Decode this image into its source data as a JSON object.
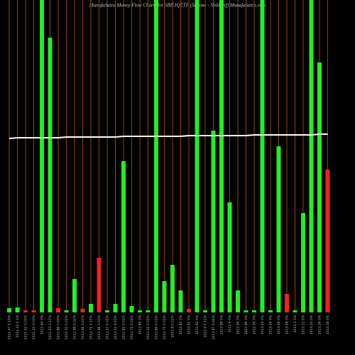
{
  "chart_data": {
    "type": "bar",
    "title": "MunafaSutra  Money Flow  Charts for SBILIQETF                (Sbiamc - Sbiliqetf) MunafaSutra.com",
    "categories": [
      "1011.47 0.15%",
      "1011.42 0.1%",
      "1011.42 0.01%",
      "1011.43 0.01%",
      "1011.44 0%",
      "1011.53 0.12%",
      "1012.86 0.05%",
      "1012.32 0.01%",
      "1012.58 0.02%",
      "1012.66 0.01%",
      "1012.71 0.11%",
      "1012.46 0.02%",
      "1012.57 0.01%",
      "1012.53 0.01%",
      "1012.62 0.01%",
      "1012.71 0.04%",
      "1012.69 0%",
      "1012.54 0.01%",
      "1012.66 0.01%",
      "1012.72 0.01%",
      "1012.8 0.01%",
      "1012.83 0%",
      "1012.91 0%",
      "1012.93 0%",
      "1012.9 0.12%",
      "1012.87 0.04%",
      "1012.88 0%",
      "1012.9 0%",
      "1012.94 0%",
      "1012.98 0%",
      "1012.99 0%",
      "1013.01 0%",
      "1013.04 0%",
      "1013.06 0%",
      "1013.08 0%",
      "1013.1 0%",
      "1013.12 0%",
      "1013.14 0%",
      "1013.16 0%",
      "1013.18 0%"
    ],
    "values": [
      6,
      7,
      3,
      3,
      440,
      387,
      6,
      3,
      47,
      5,
      12,
      77,
      3,
      12,
      213,
      9,
      3,
      3,
      440,
      44,
      67,
      31,
      5,
      440,
      3,
      256,
      440,
      155,
      31,
      3,
      3,
      440,
      3,
      234,
      26,
      3,
      140,
      440,
      352,
      201
    ],
    "colors": [
      "#22ee22",
      "#22ee22",
      "#ee2222",
      "#ee2222",
      "#22ee22",
      "#22ee22",
      "#ee2222",
      "#22ee22",
      "#22ee22",
      "#ee2222",
      "#22ee22",
      "#ee2222",
      "#22ee22",
      "#22ee22",
      "#22ee22",
      "#22ee22",
      "#22ee22",
      "#22ee22",
      "#22ee22",
      "#22ee22",
      "#22ee22",
      "#22ee22",
      "#ee2222",
      "#22ee22",
      "#22ee22",
      "#22ee22",
      "#22ee22",
      "#22ee22",
      "#22ee22",
      "#22ee22",
      "#22ee22",
      "#22ee22",
      "#22ee22",
      "#22ee22",
      "#ee2222",
      "#22ee22",
      "#22ee22",
      "#22ee22",
      "#22ee22",
      "#ee2222"
    ],
    "line": {
      "color": "#ffffff",
      "values": [
        245,
        246,
        246,
        246,
        246,
        246,
        246,
        247,
        247,
        247,
        247,
        247,
        247,
        247,
        248,
        248,
        248,
        248,
        248,
        248,
        248,
        248,
        249,
        249,
        249,
        249,
        249,
        249,
        249,
        249,
        250,
        250,
        250,
        250,
        250,
        250,
        250,
        250,
        251,
        251
      ]
    },
    "ylim": [
      0,
      440
    ],
    "grid": true,
    "grid_color": "#8b4a00"
  }
}
